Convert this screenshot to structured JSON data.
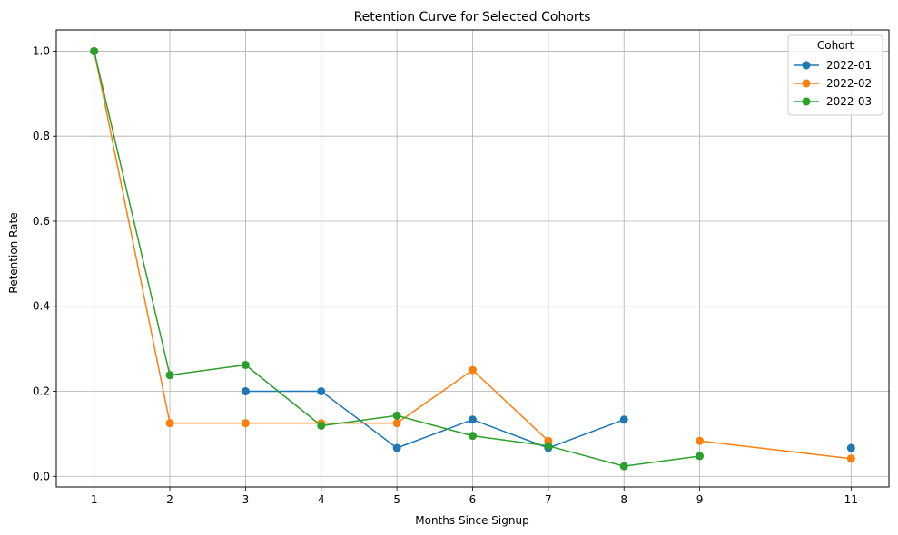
{
  "chart_data": {
    "type": "line",
    "title": "Retention Curve for Selected Cohorts",
    "xlabel": "Months Since Signup",
    "ylabel": "Retention Rate",
    "x_ticks": [
      1,
      2,
      3,
      4,
      5,
      6,
      7,
      8,
      9,
      11
    ],
    "y_ticks": [
      "0.0",
      "0.2",
      "0.4",
      "0.6",
      "0.8",
      "1.0"
    ],
    "xlim": [
      0.5,
      11.5
    ],
    "ylim": [
      -0.025,
      1.05
    ],
    "grid": true,
    "legend": {
      "title": "Cohort",
      "placement": "top-right"
    },
    "series": [
      {
        "name": "2022-01",
        "color": "#1f77b4",
        "points": [
          {
            "x": 1,
            "y": 1.0
          },
          {
            "x": 3,
            "y": 0.2
          },
          {
            "x": 4,
            "y": 0.2
          },
          {
            "x": 5,
            "y": 0.0667
          },
          {
            "x": 6,
            "y": 0.1333
          },
          {
            "x": 7,
            "y": 0.0667
          },
          {
            "x": 8,
            "y": 0.1333
          },
          {
            "x": 11,
            "y": 0.0667
          }
        ],
        "segments": [
          [
            1
          ],
          [
            3,
            4,
            5,
            6,
            7,
            8
          ],
          [
            11
          ]
        ]
      },
      {
        "name": "2022-02",
        "color": "#ff7f0e",
        "points": [
          {
            "x": 1,
            "y": 1.0
          },
          {
            "x": 2,
            "y": 0.125
          },
          {
            "x": 3,
            "y": 0.125
          },
          {
            "x": 4,
            "y": 0.125
          },
          {
            "x": 5,
            "y": 0.125
          },
          {
            "x": 6,
            "y": 0.25
          },
          {
            "x": 7,
            "y": 0.0833
          },
          {
            "x": 9,
            "y": 0.0833
          },
          {
            "x": 11,
            "y": 0.0417
          }
        ],
        "segments": [
          [
            1,
            2,
            3,
            4,
            5,
            6,
            7
          ],
          [
            9,
            11
          ]
        ]
      },
      {
        "name": "2022-03",
        "color": "#2ca02c",
        "points": [
          {
            "x": 1,
            "y": 1.0
          },
          {
            "x": 2,
            "y": 0.2381
          },
          {
            "x": 3,
            "y": 0.2619
          },
          {
            "x": 4,
            "y": 0.119
          },
          {
            "x": 5,
            "y": 0.1429
          },
          {
            "x": 6,
            "y": 0.0952
          },
          {
            "x": 7,
            "y": 0.0714
          },
          {
            "x": 8,
            "y": 0.0238
          },
          {
            "x": 9,
            "y": 0.0476
          }
        ],
        "segments": [
          [
            1,
            2,
            3,
            4,
            5,
            6,
            7,
            8,
            9
          ]
        ]
      }
    ]
  }
}
